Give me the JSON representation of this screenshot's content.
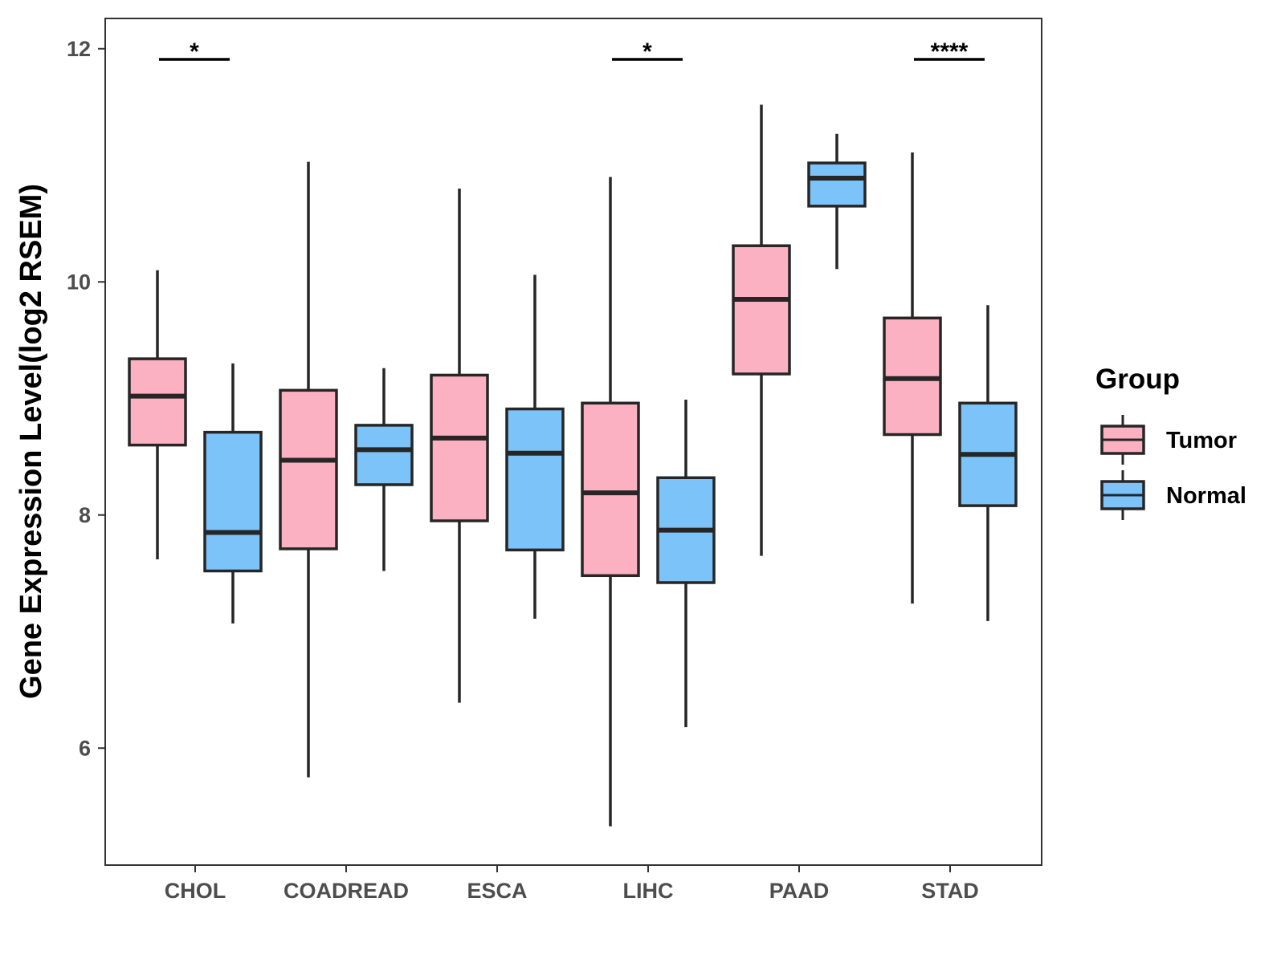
{
  "chart_data": {
    "type": "boxplot",
    "title": "",
    "xlabel": "",
    "ylabel": "Gene Expression Level(log2 RSEM)",
    "ylim": [
      5.0,
      12.3
    ],
    "yticks": [
      6,
      8,
      10,
      12
    ],
    "grid": false,
    "legend": {
      "title": "Group",
      "position": "right"
    },
    "categories": [
      "CHOL",
      "COADREAD",
      "ESCA",
      "LIHC",
      "PAAD",
      "STAD"
    ],
    "series": [
      {
        "name": "Tumor",
        "color": "#FBB1C1",
        "boxes": [
          {
            "min": 7.62,
            "q1": 8.6,
            "median": 9.02,
            "q3": 9.34,
            "max": 10.1
          },
          {
            "min": 5.75,
            "q1": 7.71,
            "median": 8.47,
            "q3": 9.07,
            "max": 11.03
          },
          {
            "min": 6.39,
            "q1": 7.95,
            "median": 8.66,
            "q3": 9.2,
            "max": 10.8
          },
          {
            "min": 5.33,
            "q1": 7.48,
            "median": 8.19,
            "q3": 8.96,
            "max": 10.9
          },
          {
            "min": 7.65,
            "q1": 9.21,
            "median": 9.85,
            "q3": 10.31,
            "max": 11.52
          },
          {
            "min": 7.24,
            "q1": 8.69,
            "median": 9.17,
            "q3": 9.69,
            "max": 11.11
          }
        ]
      },
      {
        "name": "Normal",
        "color": "#7BC3F8",
        "boxes": [
          {
            "min": 7.07,
            "q1": 7.52,
            "median": 7.85,
            "q3": 8.71,
            "max": 9.3
          },
          {
            "min": 7.52,
            "q1": 8.26,
            "median": 8.56,
            "q3": 8.77,
            "max": 9.26
          },
          {
            "min": 7.11,
            "q1": 7.7,
            "median": 8.53,
            "q3": 8.91,
            "max": 10.06
          },
          {
            "min": 6.18,
            "q1": 7.42,
            "median": 7.87,
            "q3": 8.32,
            "max": 8.99
          },
          {
            "min": 10.11,
            "q1": 10.65,
            "median": 10.89,
            "q3": 11.02,
            "max": 11.27
          },
          {
            "min": 7.09,
            "q1": 8.08,
            "median": 8.52,
            "q3": 8.96,
            "max": 9.8
          }
        ]
      }
    ],
    "significance": [
      {
        "category": "CHOL",
        "label": "*"
      },
      {
        "category": "COADREAD",
        "label": ""
      },
      {
        "category": "ESCA",
        "label": ""
      },
      {
        "category": "LIHC",
        "label": "*"
      },
      {
        "category": "PAAD",
        "label": ""
      },
      {
        "category": "STAD",
        "label": "****"
      }
    ]
  }
}
